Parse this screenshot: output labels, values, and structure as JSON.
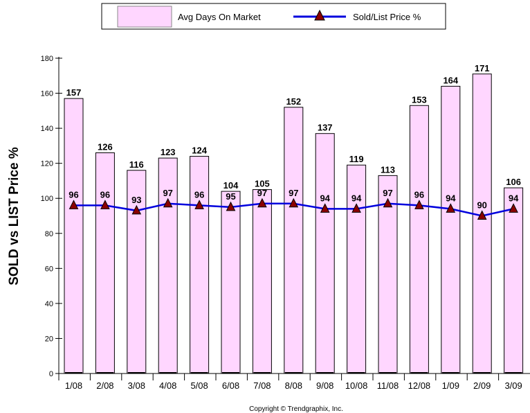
{
  "chart_data": {
    "type": "bar",
    "categories": [
      "1/08",
      "2/08",
      "3/08",
      "4/08",
      "5/08",
      "6/08",
      "7/08",
      "8/08",
      "9/08",
      "10/08",
      "11/08",
      "12/08",
      "1/09",
      "2/09",
      "3/09"
    ],
    "series": [
      {
        "name": "Avg Days On Market",
        "type": "bar",
        "values": [
          157,
          126,
          116,
          123,
          124,
          104,
          105,
          152,
          137,
          119,
          113,
          153,
          164,
          171,
          106
        ]
      },
      {
        "name": "Sold/List Price %",
        "type": "line",
        "values": [
          96,
          96,
          93,
          97,
          96,
          95,
          97,
          97,
          94,
          94,
          97,
          96,
          94,
          90,
          94
        ]
      }
    ],
    "ylabel": "SOLD vs LIST Price %",
    "ylim": [
      0,
      180
    ],
    "yticks": [
      0,
      20,
      40,
      60,
      80,
      100,
      120,
      140,
      160,
      180
    ],
    "legend_position": "top-center",
    "grid": false,
    "colors": {
      "bar_fill": "#ffd6ff",
      "bar_stroke": "#000000",
      "line": "#0000dd",
      "marker": "#8b0000"
    },
    "footnote": "Copyright © Trendgraphix, Inc."
  }
}
